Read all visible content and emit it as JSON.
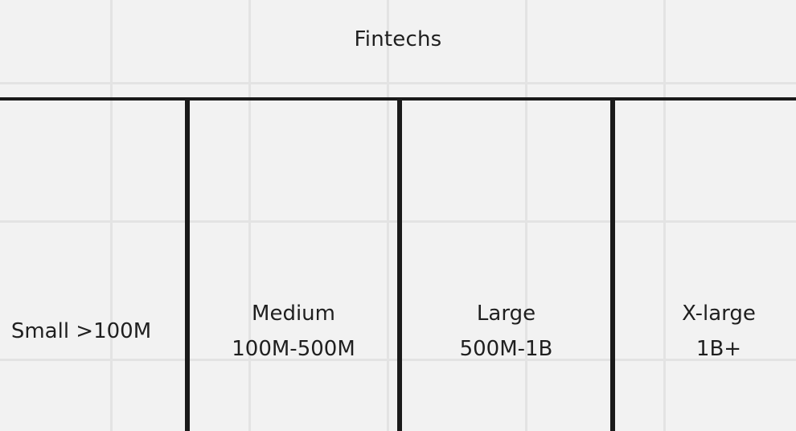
{
  "title": "Fintechs",
  "segments": [
    {
      "line1": "Small >100M",
      "line2": ""
    },
    {
      "line1": "Medium",
      "line2": "100M-500M"
    },
    {
      "line1": "Large",
      "line2": "500M-1B"
    },
    {
      "line1": "X-large",
      "line2": "1B+"
    }
  ]
}
